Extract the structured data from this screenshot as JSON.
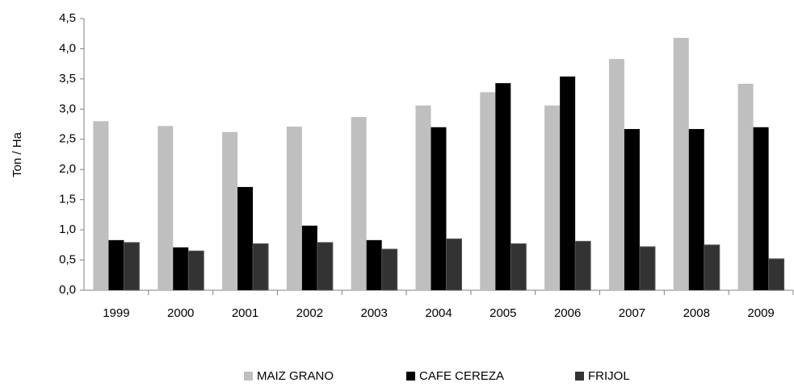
{
  "chart_data": {
    "type": "bar",
    "y_label": "Ton / Ha",
    "categories": [
      "1999",
      "2000",
      "2001",
      "2002",
      "2003",
      "2004",
      "2005",
      "2006",
      "2007",
      "2008",
      "2009"
    ],
    "series": [
      {
        "name": "MAIZ GRANO",
        "color": "#bfbfbf",
        "values": [
          2.8,
          2.72,
          2.62,
          2.71,
          2.87,
          3.06,
          3.28,
          3.06,
          3.83,
          4.18,
          3.42
        ]
      },
      {
        "name": "CAFE CEREZA",
        "color": "#000000",
        "values": [
          0.83,
          0.71,
          1.71,
          1.07,
          0.83,
          2.7,
          3.43,
          3.54,
          2.67,
          2.67,
          2.7
        ]
      },
      {
        "name": "FRIJOL",
        "color": "#333333",
        "values": [
          0.79,
          0.65,
          0.77,
          0.79,
          0.68,
          0.85,
          0.77,
          0.81,
          0.72,
          0.75,
          0.52
        ]
      }
    ],
    "ylim": [
      0,
      4.5
    ],
    "yticks": [
      {
        "value": 0,
        "label": "0,0"
      },
      {
        "value": 0.5,
        "label": "0,5"
      },
      {
        "value": 1,
        "label": "1,0"
      },
      {
        "value": 1.5,
        "label": "1,5"
      },
      {
        "value": 2,
        "label": "2,0"
      },
      {
        "value": 2.5,
        "label": "2,5"
      },
      {
        "value": 3,
        "label": "3,0"
      },
      {
        "value": 3.5,
        "label": "3,5"
      },
      {
        "value": 4,
        "label": "4,0"
      },
      {
        "value": 4.5,
        "label": "4,5"
      }
    ],
    "grid": false,
    "legend": "bottom"
  }
}
